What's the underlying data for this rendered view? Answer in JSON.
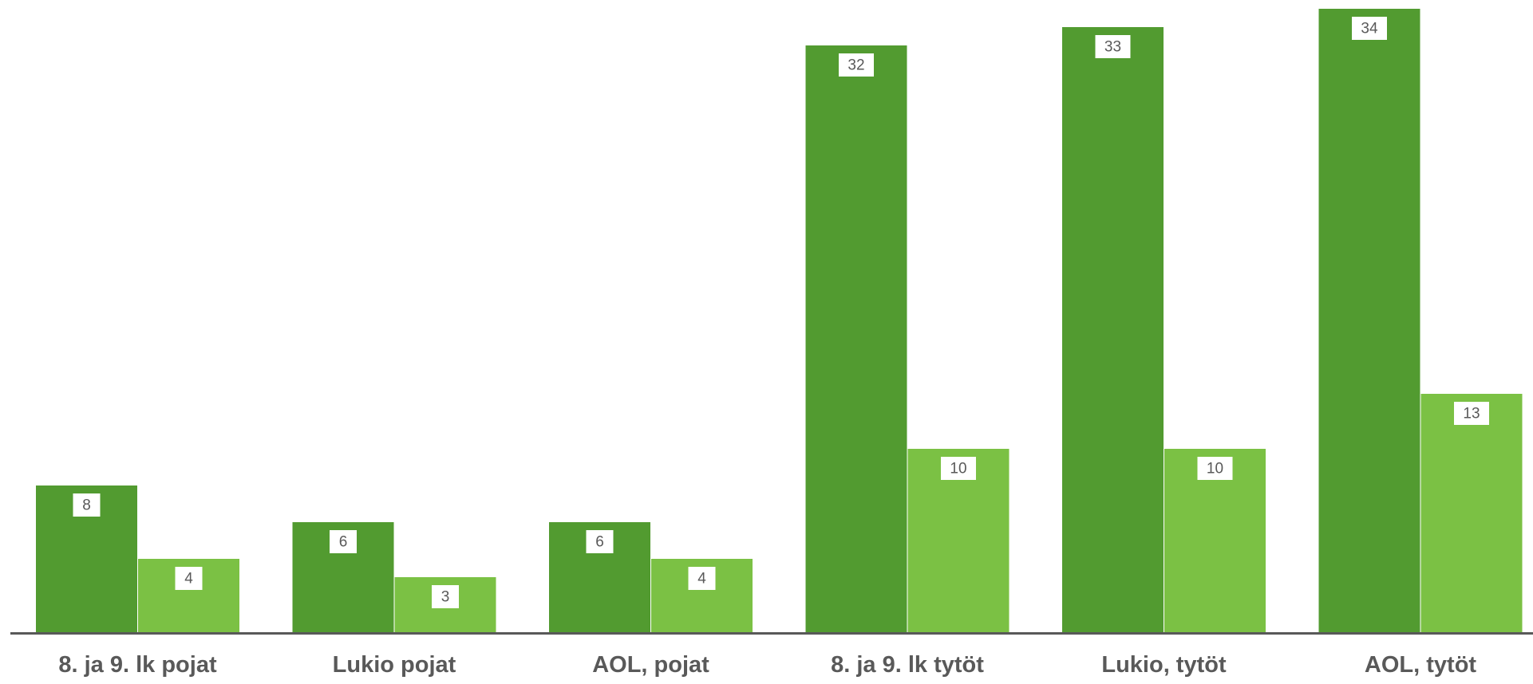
{
  "chart_data": {
    "type": "bar",
    "categories": [
      "8. ja 9. lk pojat",
      "Lukio pojat",
      "AOL, pojat",
      "8. ja 9. lk tytöt",
      "Lukio, tytöt",
      "AOL, tytöt"
    ],
    "series": [
      {
        "values": [
          8,
          6,
          6,
          32,
          33,
          34
        ]
      },
      {
        "values": [
          4,
          3,
          4,
          10,
          10,
          13
        ]
      }
    ],
    "ylim": [
      0,
      34
    ],
    "grid": false,
    "legend": false,
    "colors": {
      "series_0": "#529b30",
      "series_1": "#7bc144",
      "axis": "#595959",
      "category_text": "#595959",
      "label_text": "#595959",
      "label_bg": "#ffffff"
    }
  }
}
